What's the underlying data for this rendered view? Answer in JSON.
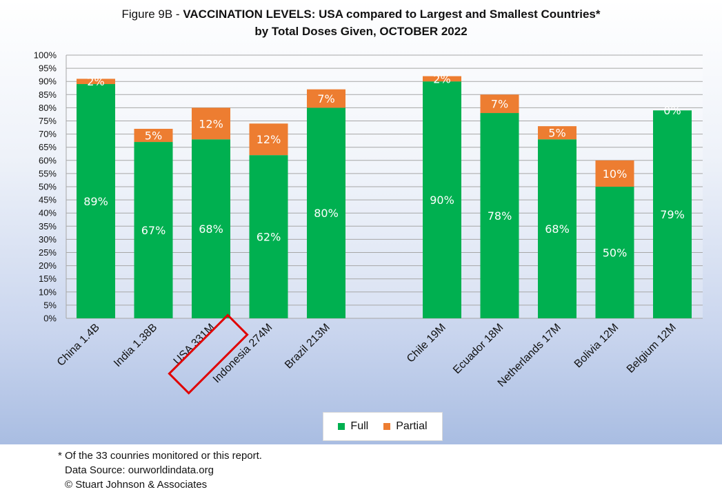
{
  "chart_data": {
    "type": "bar",
    "stacked": true,
    "title_prefix": "Figure 9B - ",
    "title_bold": "VACCINATION LEVELS:  USA compared to Largest and Smallest Countries*",
    "subtitle": "by Total Doses Given, OCTOBER 2022",
    "categories": [
      "China 1.4B",
      "India 1.38B",
      "USA 331M",
      "Indonesia 274M",
      "Brazil 213M",
      "Chile 19M",
      "Ecuador 18M",
      "Netherlands 17M",
      "Bolivia 12M",
      "Belgium 12M"
    ],
    "series": [
      {
        "name": "Full",
        "color": "#00b050",
        "values": [
          89,
          67,
          68,
          62,
          80,
          90,
          78,
          68,
          50,
          79
        ],
        "labels": [
          "89%",
          "67%",
          "68%",
          "62%",
          "80%",
          "90%",
          "78%",
          "68%",
          "50%",
          "79%"
        ]
      },
      {
        "name": "Partial",
        "color": "#ed7d31",
        "values": [
          2,
          5,
          12,
          12,
          7,
          2,
          7,
          5,
          10,
          0
        ],
        "labels": [
          "2%",
          "5%",
          "12%",
          "12%",
          "7%",
          "2%",
          "7%",
          "5%",
          "10%",
          "0%"
        ]
      }
    ],
    "ylim": [
      0,
      100
    ],
    "yticks": [
      "0%",
      "5%",
      "10%",
      "15%",
      "20%",
      "25%",
      "30%",
      "35%",
      "40%",
      "45%",
      "50%",
      "55%",
      "60%",
      "65%",
      "70%",
      "75%",
      "80%",
      "85%",
      "90%",
      "95%",
      "100%"
    ],
    "grid": true,
    "legend": "bottom",
    "highlighted_category": "USA 331M",
    "highlight_color": "#e00000"
  },
  "footnotes": {
    "note": "* Of the 33 counries monitored or this report.",
    "source": "Data Source:  ourworldindata.org",
    "copyright": "© Stuart Johnson & Associates"
  }
}
